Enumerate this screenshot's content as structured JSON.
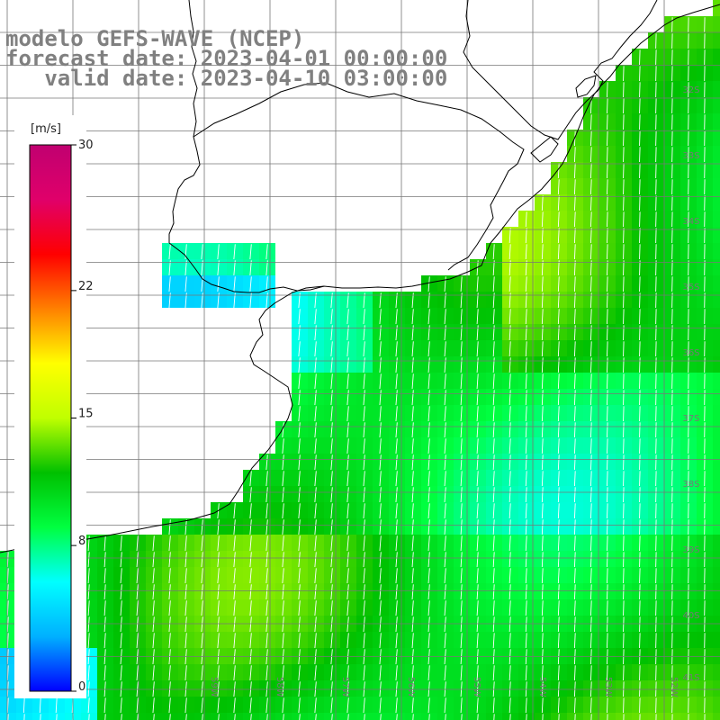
{
  "title": {
    "line1": "modelo GEFS-WAVE (NCEP)",
    "line2": "forecast date: 2023-04-01 00:00:00",
    "line3": "   valid date: 2023-04-10 03:00:00"
  },
  "colorbar": {
    "unit": "[m/s]",
    "ticks": [
      "30",
      "22",
      "15",
      "8",
      "0"
    ],
    "tick_values": [
      30,
      22,
      15,
      8,
      0
    ],
    "min": 0,
    "max": 30,
    "stops": [
      "#0000ff",
      "#00b0ff",
      "#00ffff",
      "#00ff40",
      "#00c000",
      "#c0ff00",
      "#ffff00",
      "#ff8000",
      "#ff0000",
      "#e0006a",
      "#c00070"
    ]
  },
  "lat_labels": [
    "32S",
    "33S",
    "34S",
    "35S",
    "36S",
    "37S",
    "38S",
    "39S",
    "40S",
    "41S"
  ],
  "lon_labels": [
    "59W",
    "58W",
    "57W",
    "56W",
    "55W",
    "54W",
    "53W",
    "52W"
  ],
  "colors": {
    "land": "#ffffff",
    "grid": "#777777",
    "coast": "#000000",
    "arrow": "#ffffff",
    "title": "#808080"
  },
  "field": {
    "base_speed": 9.6,
    "dominant_direction": "toward SSW (from NNE)"
  }
}
